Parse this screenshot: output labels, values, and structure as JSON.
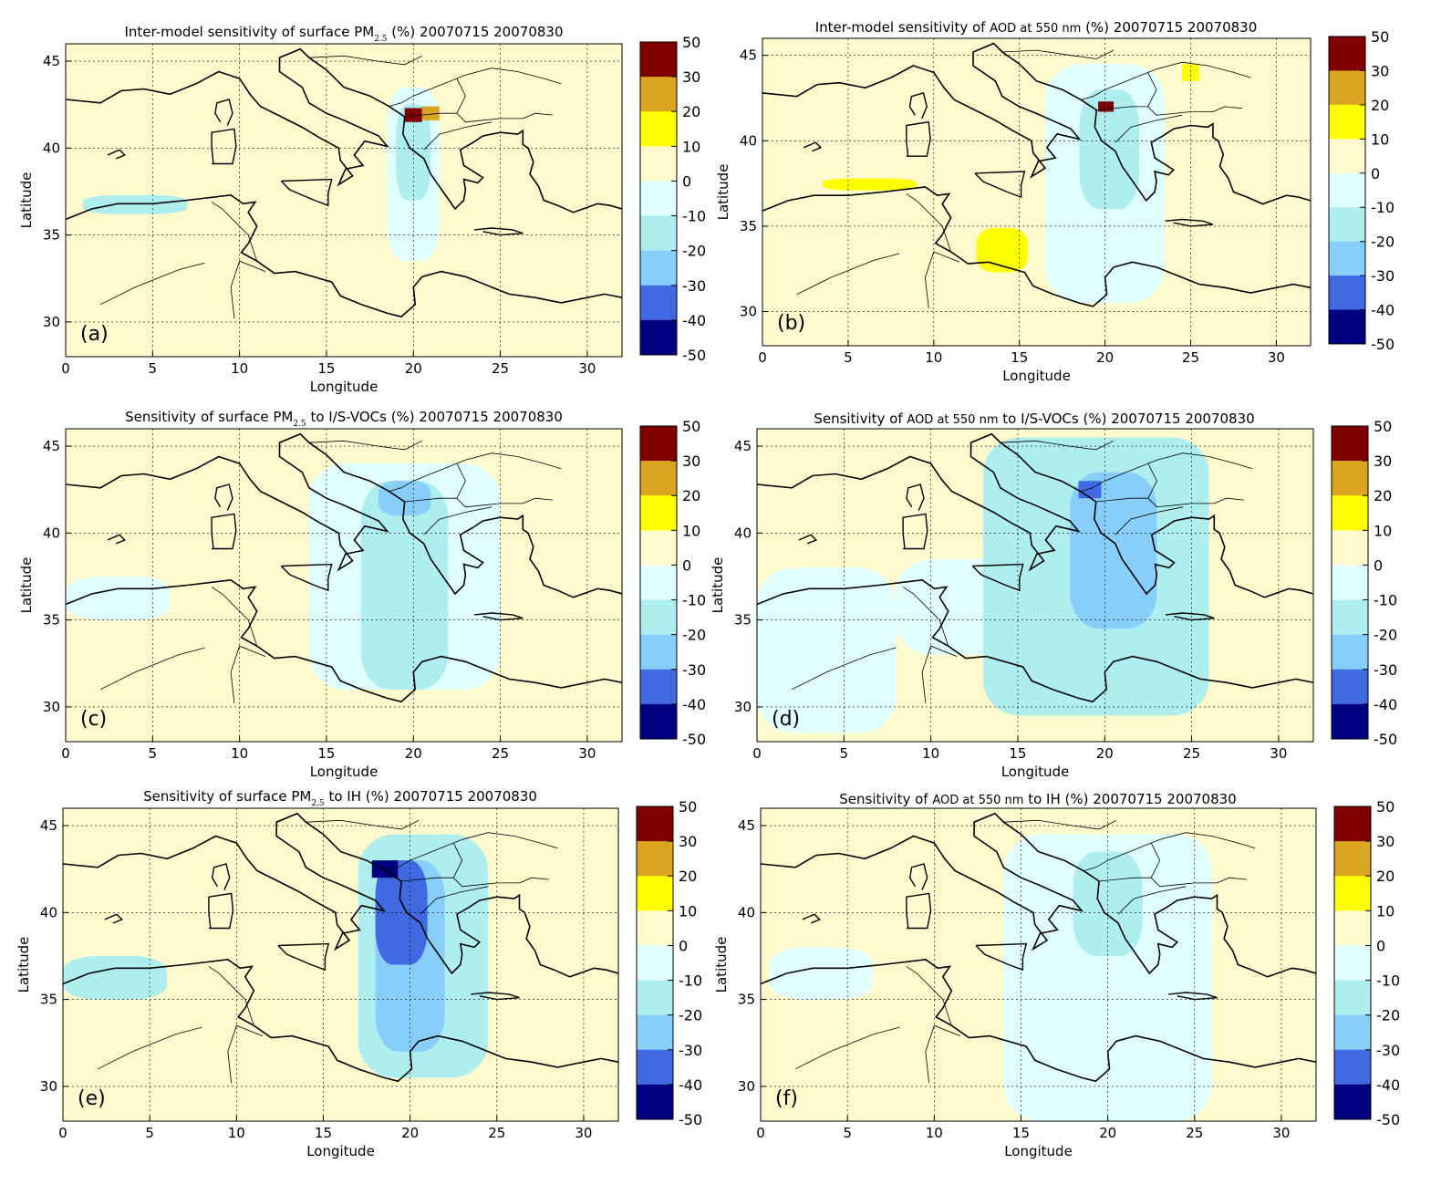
{
  "colorbar": {
    "ticks": [
      "50",
      "30",
      "20",
      "10",
      "0",
      "-10",
      "-20",
      "-30",
      "-40",
      "-50"
    ],
    "colors": [
      "#800000",
      "#DAA520",
      "#FFFF00",
      "#FFFACD",
      "#E0FFFF",
      "#AFEEEE",
      "#87CEFA",
      "#4169E1",
      "#000080"
    ]
  },
  "chart_data": [
    {
      "type": "heatmap",
      "panel_label": "(a)",
      "title": "Inter-model sensitivity of surface PM2.5 (%) 20070715 20070830",
      "title_parts": [
        "Inter-model sensitivity of surface PM",
        "2.5",
        " (%) 20070715 20070830"
      ],
      "xlabel": "Longitude",
      "ylabel": "Latitude",
      "xlim": [
        0,
        32
      ],
      "ylim": [
        28,
        46
      ],
      "xticks": [
        "0",
        "5",
        "10",
        "15",
        "20",
        "25",
        "30"
      ],
      "yticks": [
        "30",
        "35",
        "40",
        "45"
      ],
      "grid": true,
      "colorbar_levels": [
        -50,
        -40,
        -30,
        -20,
        -10,
        0,
        10,
        20,
        30,
        50
      ],
      "regions": [
        {
          "lon": [
            18.5,
            21.5
          ],
          "lat": [
            33.5,
            43.5
          ],
          "bin": "-10 to 0"
        },
        {
          "lon": [
            19.0,
            21.0
          ],
          "lat": [
            37.0,
            42.5
          ],
          "bin": "-20 to -10"
        },
        {
          "lon": [
            1.0,
            7.0
          ],
          "lat": [
            36.2,
            37.3
          ],
          "bin": "-20 to -10"
        },
        {
          "lon": [
            19.5,
            20.5
          ],
          "lat": [
            41.5,
            42.3
          ],
          "bin": "30 to 50"
        },
        {
          "lon": [
            20.5,
            21.5
          ],
          "lat": [
            41.6,
            42.4
          ],
          "bin": "20 to 30"
        }
      ]
    },
    {
      "type": "heatmap",
      "panel_label": "(b)",
      "title": "Inter-model sensitivity of AOD at 550 nm (%) 20070715 20070830",
      "title_parts": [
        "Inter-model sensitivity of ",
        "AOD at 550 nm",
        " (%) 20070715 20070830"
      ],
      "xlabel": "Longitude",
      "ylabel": "Latitude",
      "xlim": [
        0,
        32
      ],
      "ylim": [
        28,
        46
      ],
      "xticks": [
        "0",
        "5",
        "10",
        "15",
        "20",
        "25",
        "30"
      ],
      "yticks": [
        "30",
        "35",
        "40",
        "45"
      ],
      "grid": true,
      "colorbar_levels": [
        -50,
        -40,
        -30,
        -20,
        -10,
        0,
        10,
        20,
        30,
        50
      ],
      "regions": [
        {
          "lon": [
            16.5,
            23.5
          ],
          "lat": [
            30.5,
            44.5
          ],
          "bin": "-10 to 0"
        },
        {
          "lon": [
            18.5,
            22.0
          ],
          "lat": [
            36.0,
            43.0
          ],
          "bin": "-20 to -10"
        },
        {
          "lon": [
            3.5,
            9.0
          ],
          "lat": [
            37.1,
            37.8
          ],
          "bin": "10 to 20"
        },
        {
          "lon": [
            12.5,
            15.5
          ],
          "lat": [
            32.3,
            34.9
          ],
          "bin": "10 to 20"
        },
        {
          "lon": [
            24.5,
            25.5
          ],
          "lat": [
            43.5,
            44.5
          ],
          "bin": "10 to 20"
        },
        {
          "lon": [
            19.6,
            20.5
          ],
          "lat": [
            41.7,
            42.3
          ],
          "bin": "30 to 50"
        }
      ]
    },
    {
      "type": "heatmap",
      "panel_label": "(c)",
      "title": "Sensitivity of surface PM2.5 to I/S-VOCs (%) 20070715 20070830",
      "title_parts": [
        "Sensitivity of surface PM",
        "2.5",
        " to I/S-VOCs (%) 20070715 20070830"
      ],
      "xlabel": "Longitude",
      "ylabel": "Latitude",
      "xlim": [
        0,
        32
      ],
      "ylim": [
        28,
        46
      ],
      "xticks": [
        "0",
        "5",
        "10",
        "15",
        "20",
        "25",
        "30"
      ],
      "yticks": [
        "30",
        "35",
        "40",
        "45"
      ],
      "grid": true,
      "colorbar_levels": [
        -50,
        -40,
        -30,
        -20,
        -10,
        0,
        10,
        20,
        30,
        50
      ],
      "regions": [
        {
          "lon": [
            14.0,
            25.0
          ],
          "lat": [
            31.0,
            44.0
          ],
          "bin": "-10 to 0"
        },
        {
          "lon": [
            0.0,
            6.0
          ],
          "lat": [
            35.0,
            37.5
          ],
          "bin": "-10 to 0"
        },
        {
          "lon": [
            17.0,
            22.0
          ],
          "lat": [
            31.0,
            43.0
          ],
          "bin": "-20 to -10"
        },
        {
          "lon": [
            18.0,
            21.0
          ],
          "lat": [
            41.0,
            43.0
          ],
          "bin": "-30 to -20"
        }
      ]
    },
    {
      "type": "heatmap",
      "panel_label": "(d)",
      "title": "Sensitivity of AOD at 550 nm to I/S-VOCs (%) 20070715 20070830",
      "title_parts": [
        "Sensitivity of ",
        "AOD at 550 nm",
        " to I/S-VOCs (%) 20070715 20070830"
      ],
      "xlabel": "Longitude",
      "ylabel": "Latitude",
      "xlim": [
        0,
        32
      ],
      "ylim": [
        28,
        46
      ],
      "xticks": [
        "0",
        "5",
        "10",
        "15",
        "20",
        "25",
        "30"
      ],
      "yticks": [
        "30",
        "35",
        "40",
        "45"
      ],
      "grid": true,
      "colorbar_levels": [
        -50,
        -40,
        -30,
        -20,
        -10,
        0,
        10,
        20,
        30,
        50
      ],
      "regions": [
        {
          "lon": [
            0.0,
            8.0
          ],
          "lat": [
            28.5,
            38.0
          ],
          "bin": "-10 to 0"
        },
        {
          "lon": [
            8.0,
            15.0
          ],
          "lat": [
            33.0,
            38.5
          ],
          "bin": "-10 to 0"
        },
        {
          "lon": [
            13.0,
            26.0
          ],
          "lat": [
            29.5,
            45.5
          ],
          "bin": "-20 to -10"
        },
        {
          "lon": [
            18.0,
            23.0
          ],
          "lat": [
            34.5,
            43.5
          ],
          "bin": "-30 to -20"
        },
        {
          "lon": [
            18.5,
            19.8
          ],
          "lat": [
            42.0,
            43.0
          ],
          "bin": "-40 to -30"
        }
      ]
    },
    {
      "type": "heatmap",
      "panel_label": "(e)",
      "title": "Sensitivity of surface PM2.5 to IH (%) 20070715 20070830",
      "title_parts": [
        "Sensitivity of surface PM",
        "2.5",
        " to IH (%) 20070715 20070830"
      ],
      "xlabel": "Longitude",
      "ylabel": "Latitude",
      "xlim": [
        0,
        32
      ],
      "ylim": [
        28,
        46
      ],
      "xticks": [
        "0",
        "5",
        "10",
        "15",
        "20",
        "25",
        "30"
      ],
      "yticks": [
        "30",
        "35",
        "40",
        "45"
      ],
      "grid": true,
      "colorbar_levels": [
        -50,
        -40,
        -30,
        -20,
        -10,
        0,
        10,
        20,
        30,
        50
      ],
      "regions": [
        {
          "lon": [
            0.0,
            6.0
          ],
          "lat": [
            35.0,
            37.5
          ],
          "bin": "-20 to -10"
        },
        {
          "lon": [
            17.0,
            24.5
          ],
          "lat": [
            30.5,
            44.5
          ],
          "bin": "-20 to -10"
        },
        {
          "lon": [
            18.0,
            22.0
          ],
          "lat": [
            32.0,
            43.0
          ],
          "bin": "-30 to -20"
        },
        {
          "lon": [
            18.0,
            21.0
          ],
          "lat": [
            37.0,
            43.0
          ],
          "bin": "-40 to -30"
        },
        {
          "lon": [
            17.8,
            19.3
          ],
          "lat": [
            42.0,
            43.0
          ],
          "bin": "-50 to -40"
        }
      ]
    },
    {
      "type": "heatmap",
      "panel_label": "(f)",
      "title": "Sensitivity of AOD at 550 nm to IH (%) 20070715 20070830",
      "title_parts": [
        "Sensitivity of ",
        "AOD at 550 nm",
        " to IH (%) 20070715 20070830"
      ],
      "xlabel": "Longitude",
      "ylabel": "Latitude",
      "xlim": [
        0,
        32
      ],
      "ylim": [
        28,
        46
      ],
      "xticks": [
        "0",
        "5",
        "10",
        "15",
        "20",
        "25",
        "30"
      ],
      "yticks": [
        "30",
        "35",
        "40",
        "45"
      ],
      "grid": true,
      "colorbar_levels": [
        -50,
        -40,
        -30,
        -20,
        -10,
        0,
        10,
        20,
        30,
        50
      ],
      "regions": [
        {
          "lon": [
            0.5,
            6.5
          ],
          "lat": [
            35.0,
            38.0
          ],
          "bin": "-10 to 0"
        },
        {
          "lon": [
            14.0,
            26.0
          ],
          "lat": [
            28.0,
            44.5
          ],
          "bin": "-10 to 0"
        },
        {
          "lon": [
            18.0,
            22.0
          ],
          "lat": [
            37.5,
            43.5
          ],
          "bin": "-20 to -10"
        }
      ]
    }
  ]
}
